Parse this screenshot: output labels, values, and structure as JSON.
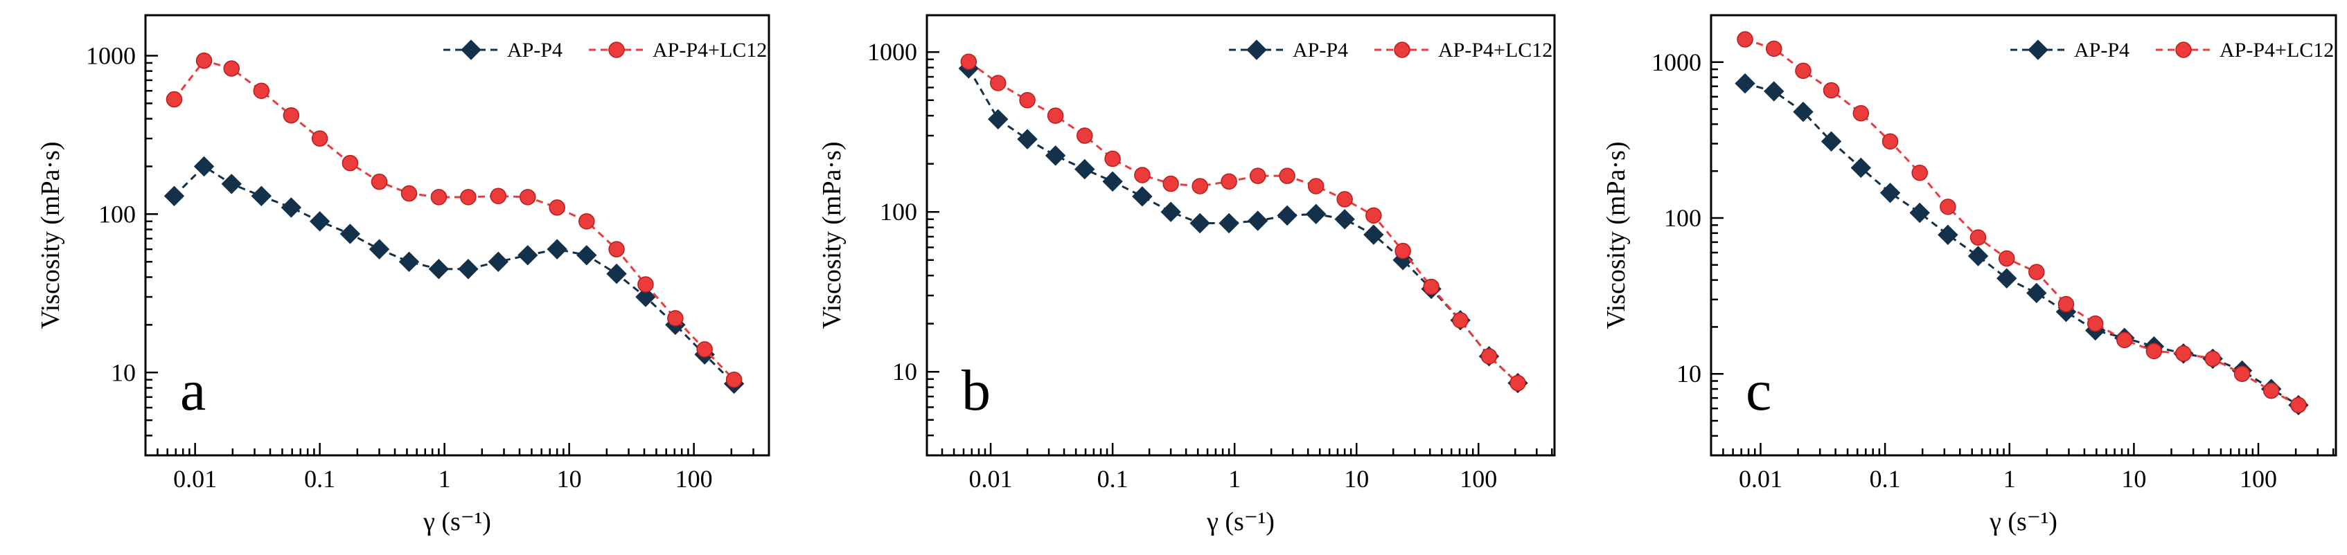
{
  "chart_data": [
    {
      "type": "line",
      "panel_label": "a",
      "xlabel": "γ (s⁻¹)",
      "ylabel": "Viscosity (mPa·s)",
      "x_scale": "log",
      "y_scale": "log",
      "xlim": [
        0.004,
        400
      ],
      "ylim": [
        3,
        1800
      ],
      "x_ticks": [
        0.01,
        0.1,
        1,
        10,
        100
      ],
      "x_tick_labels": [
        "0.01",
        "0.1",
        "1",
        "10",
        "100"
      ],
      "y_ticks": [
        10,
        100,
        1000
      ],
      "y_tick_labels": [
        "10",
        "100",
        "1000"
      ],
      "grid": false,
      "legend_position": "top-right",
      "series": [
        {
          "name": "AP-P4",
          "color": "#13314a",
          "marker": "diamond",
          "x": [
            0.0068,
            0.0118,
            0.0196,
            0.034,
            0.059,
            0.1,
            0.175,
            0.3,
            0.52,
            0.9,
            1.55,
            2.7,
            4.65,
            8.0,
            13.8,
            24,
            41,
            71,
            122,
            210
          ],
          "y": [
            130,
            200,
            155,
            130,
            110,
            90,
            75,
            60,
            50,
            45,
            45,
            50,
            55,
            60,
            55,
            42,
            30,
            20,
            13,
            8.5
          ]
        },
        {
          "name": "AP-P4+LC12",
          "color": "#ec3b3b",
          "marker": "circle",
          "x": [
            0.0068,
            0.0118,
            0.0196,
            0.034,
            0.059,
            0.1,
            0.175,
            0.3,
            0.52,
            0.9,
            1.55,
            2.7,
            4.65,
            8.0,
            13.8,
            24,
            41,
            71,
            122,
            210
          ],
          "y": [
            530,
            930,
            830,
            600,
            420,
            300,
            210,
            160,
            135,
            128,
            128,
            130,
            128,
            110,
            90,
            60,
            36,
            22,
            14,
            9
          ]
        }
      ]
    },
    {
      "type": "line",
      "panel_label": "b",
      "xlabel": "γ (s⁻¹)",
      "ylabel": "Viscosity (mPa·s)",
      "x_scale": "log",
      "y_scale": "log",
      "xlim": [
        0.003,
        420
      ],
      "ylim": [
        3,
        1700
      ],
      "x_ticks": [
        0.01,
        0.1,
        1,
        10,
        100
      ],
      "x_tick_labels": [
        "0.01",
        "0.1",
        "1",
        "10",
        "100"
      ],
      "y_ticks": [
        10,
        100,
        1000
      ],
      "y_tick_labels": [
        "10",
        "100",
        "1000"
      ],
      "grid": false,
      "legend_position": "top-right",
      "series": [
        {
          "name": "AP-P4",
          "color": "#13314a",
          "marker": "diamond",
          "x": [
            0.0066,
            0.0115,
            0.02,
            0.034,
            0.059,
            0.1,
            0.175,
            0.3,
            0.52,
            0.9,
            1.55,
            2.7,
            4.65,
            8.0,
            13.8,
            24,
            41,
            71,
            122,
            210
          ],
          "y": [
            790,
            380,
            285,
            225,
            185,
            155,
            125,
            100,
            85,
            85,
            88,
            95,
            97,
            90,
            72,
            50,
            33,
            21,
            12.5,
            8.5
          ]
        },
        {
          "name": "AP-P4+LC12",
          "color": "#ec3b3b",
          "marker": "circle",
          "x": [
            0.0066,
            0.0115,
            0.02,
            0.034,
            0.059,
            0.1,
            0.175,
            0.3,
            0.52,
            0.9,
            1.55,
            2.7,
            4.65,
            8.0,
            13.8,
            24,
            41,
            71,
            122,
            210
          ],
          "y": [
            870,
            640,
            500,
            400,
            300,
            215,
            170,
            150,
            145,
            155,
            168,
            168,
            145,
            120,
            95,
            57,
            34,
            21,
            12.5,
            8.5
          ]
        }
      ]
    },
    {
      "type": "line",
      "panel_label": "c",
      "xlabel": "γ (s⁻¹)",
      "ylabel": "Viscosity (mPa·s)",
      "x_scale": "log",
      "y_scale": "log",
      "xlim": [
        0.004,
        420
      ],
      "ylim": [
        3,
        2000
      ],
      "x_ticks": [
        0.01,
        0.1,
        1,
        10,
        100
      ],
      "x_tick_labels": [
        "0.01",
        "0.1",
        "1",
        "10",
        "100"
      ],
      "y_ticks": [
        10,
        100,
        1000
      ],
      "y_tick_labels": [
        "10",
        "100",
        "1000"
      ],
      "grid": false,
      "legend_position": "top-right",
      "series": [
        {
          "name": "AP-P4",
          "color": "#13314a",
          "marker": "diamond",
          "x": [
            0.0075,
            0.0128,
            0.022,
            0.037,
            0.064,
            0.11,
            0.19,
            0.32,
            0.56,
            0.95,
            1.65,
            2.85,
            4.9,
            8.4,
            14.5,
            25,
            43,
            74,
            127,
            210
          ],
          "y": [
            730,
            650,
            480,
            310,
            210,
            145,
            108,
            78,
            57,
            41,
            33,
            25,
            19,
            17,
            15,
            13.5,
            12.5,
            10.5,
            8,
            6.3
          ]
        },
        {
          "name": "AP-P4+LC12",
          "color": "#ec3b3b",
          "marker": "circle",
          "x": [
            0.0075,
            0.0128,
            0.022,
            0.037,
            0.064,
            0.11,
            0.19,
            0.32,
            0.56,
            0.95,
            1.65,
            2.85,
            4.9,
            8.4,
            14.5,
            25,
            43,
            74,
            127,
            210
          ],
          "y": [
            1400,
            1220,
            880,
            660,
            470,
            310,
            195,
            118,
            75,
            55,
            45,
            28,
            21,
            16.5,
            14,
            13.5,
            12.5,
            10,
            7.8,
            6.3
          ]
        }
      ]
    }
  ]
}
